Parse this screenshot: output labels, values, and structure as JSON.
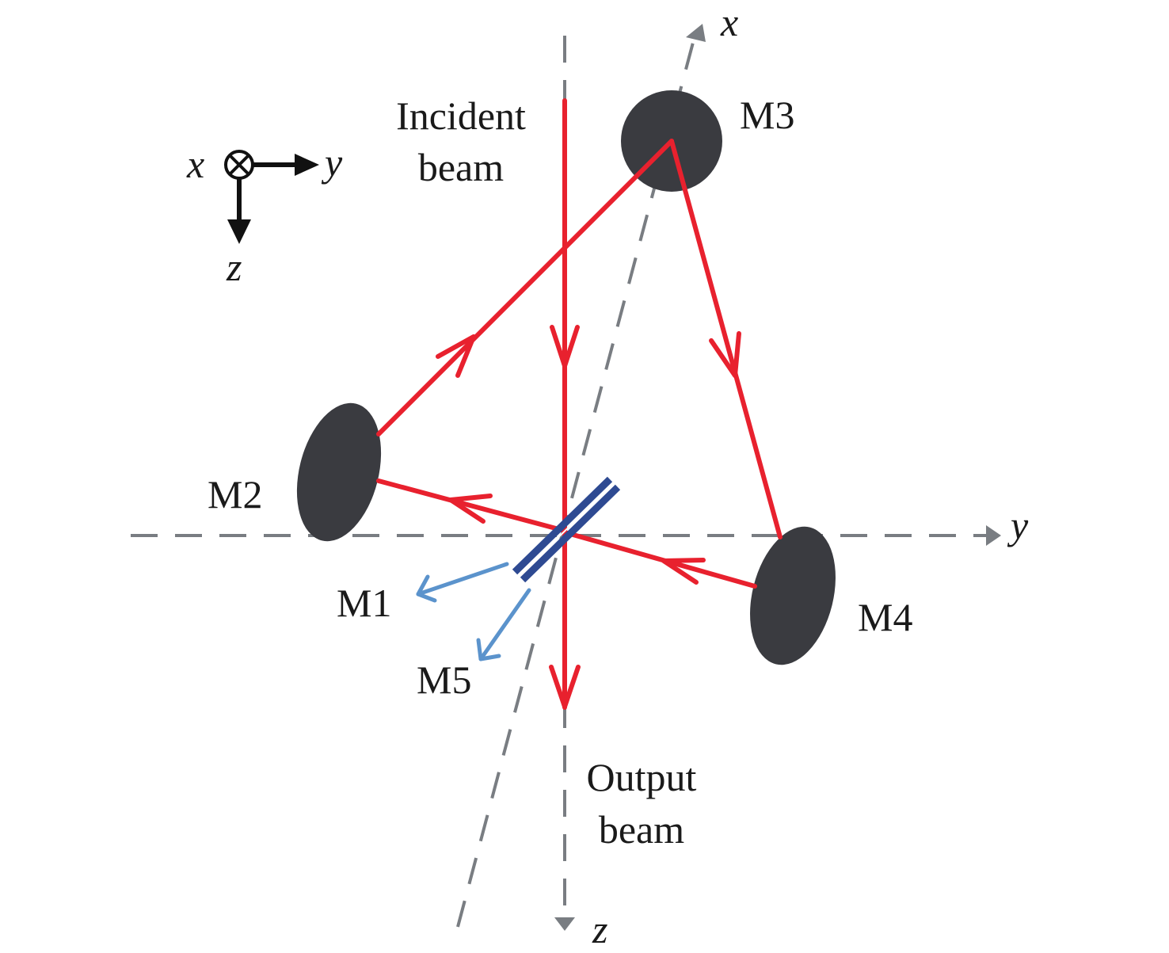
{
  "labels": {
    "incident_1": "Incident",
    "incident_2": "beam",
    "output_1": "Output",
    "output_2": "beam",
    "m1": "M1",
    "m2": "M2",
    "m3": "M3",
    "m4": "M4",
    "m5": "M5",
    "axis_x": "x",
    "axis_y": "y",
    "axis_z": "z",
    "legend_x": "x",
    "legend_y": "y",
    "legend_z": "z"
  },
  "colors": {
    "beam": "#e8212e",
    "mirror": "#3a3b40",
    "splitter": "#2e4a92",
    "leak": "#5b93cc",
    "axis": "#797d82"
  }
}
